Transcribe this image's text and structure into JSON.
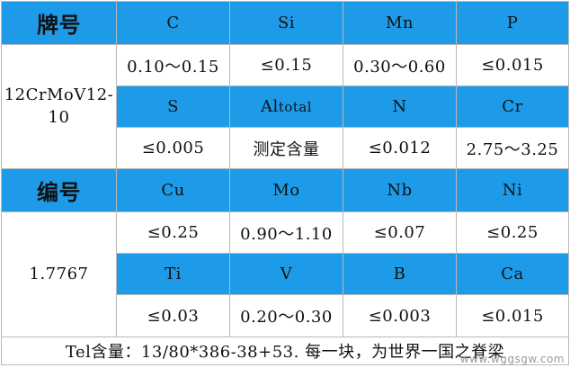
{
  "table1": {
    "header_label": "牌号",
    "grade": "12CrMoV12-10",
    "row_elements_1": [
      "C",
      "Si",
      "Mn",
      "P"
    ],
    "row_values_1": [
      "0.10～0.15",
      "≤0.15",
      "0.30～0.60",
      "≤0.015"
    ],
    "row_elements_2": {
      "s": "S",
      "al": "Al",
      "al_sub": "total",
      "n": "N",
      "cr": "Cr"
    },
    "row_values_2": [
      "≤0.005",
      "测定含量",
      "≤0.012",
      "2.75～3.25"
    ]
  },
  "table2": {
    "header_label": "编号",
    "grade": "1.7767",
    "row_elements_1": [
      "Cu",
      "Mo",
      "Nb",
      "Ni"
    ],
    "row_values_1": [
      "≤0.25",
      "0.90～1.10",
      "≤0.07",
      "≤0.25"
    ],
    "row_elements_2": [
      "Ti",
      "V",
      "B",
      "Ca"
    ],
    "row_values_2": [
      "≤0.03",
      "0.20～0.30",
      "≤0.003",
      "≤0.015"
    ]
  },
  "footer": "Tel含量：13/80*386-38+53. 每一块，为世界一国之脊梁",
  "watermark": "www.wggsgw.com",
  "colors": {
    "header_blue": "#1e9be8",
    "border": "#b8b8b8"
  }
}
